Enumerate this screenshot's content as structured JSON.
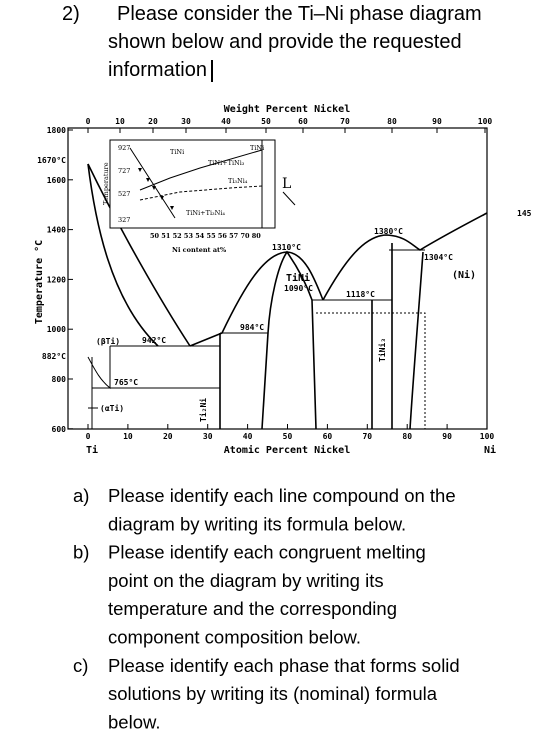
{
  "header": {
    "number": "2)",
    "lines": [
      "Please consider the Ti–Ni phase diagram",
      "shown below and provide the requested",
      "information"
    ]
  },
  "figure": {
    "top_axis": {
      "title": "Weight Percent Nickel",
      "ticks": [
        "0",
        "10",
        "20",
        "30",
        "40",
        "50",
        "60",
        "70",
        "80",
        "90",
        "100"
      ]
    },
    "bottom_axis": {
      "title": "Atomic Percent Nickel",
      "ticks": [
        "0",
        "10",
        "20",
        "30",
        "40",
        "50",
        "60",
        "70",
        "80",
        "90",
        "100"
      ],
      "left_end": "Ti",
      "right_end": "Ni"
    },
    "y_axis": {
      "title": "Temperature °C",
      "ticks": [
        "1800",
        "1600",
        "1400",
        "1200",
        "1000",
        "800",
        "600"
      ]
    },
    "annotations": [
      "1670°C",
      "882°C",
      "1310°C",
      "1380°C",
      "1304°C",
      "1118°C",
      "984°C",
      "942°C",
      "765°C",
      "TiNi",
      "1090°C",
      "(βTi)",
      "(αTi)",
      "(Ni)",
      "L",
      "145",
      "Ti₂Ni",
      "TiNi₃"
    ],
    "inset": {
      "temperatures": [
        "927",
        "727",
        "527",
        "327"
      ],
      "labels": [
        "TiNi",
        "TiNi",
        "TiNi+TiNi₃",
        "Ti₃Ni₄",
        "TiNi+Ti₃Ni₄"
      ],
      "x_ticks": "50 51 52 53 54 55 56 57   70 80",
      "x_title": "Ni content  at%",
      "y_title": "Temperature"
    }
  },
  "questions": [
    {
      "label": "a)",
      "lines": [
        "Please identify each line compound on the",
        "diagram by writing its formula below."
      ]
    },
    {
      "label": "b)",
      "lines": [
        "Please identify each congruent melting",
        "point on the diagram by writing its",
        "temperature and the corresponding",
        "component composition below."
      ]
    },
    {
      "label": "c)",
      "lines": [
        "Please identify each phase that forms solid",
        "solutions by writing its (nominal) formula",
        "below."
      ]
    }
  ]
}
